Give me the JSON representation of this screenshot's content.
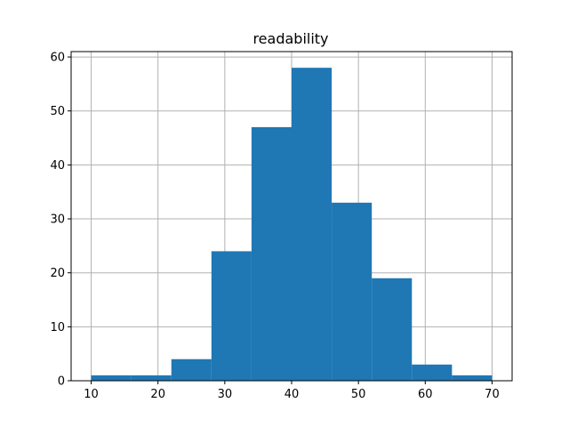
{
  "chart_data": {
    "type": "bar",
    "title": "readability",
    "xlabel": "",
    "ylabel": "",
    "bin_edges": [
      10,
      16,
      22,
      28,
      34,
      40,
      46,
      52,
      58,
      64,
      70
    ],
    "values": [
      1,
      1,
      4,
      24,
      47,
      58,
      33,
      19,
      3,
      1
    ],
    "xlim": [
      7,
      73
    ],
    "ylim": [
      0,
      61
    ],
    "xticks": [
      10,
      20,
      30,
      40,
      50,
      60,
      70
    ],
    "yticks": [
      0,
      10,
      20,
      30,
      40,
      50,
      60
    ],
    "grid": true,
    "bar_color": "#1f77b4"
  }
}
